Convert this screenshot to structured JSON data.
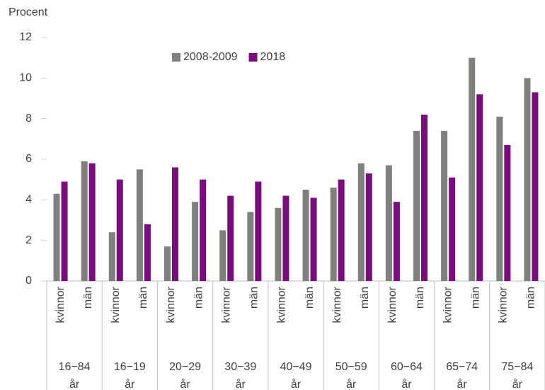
{
  "chart_data": {
    "type": "bar",
    "y_label": "Procent",
    "groups": [
      "16−84 år",
      "16−19 år",
      "20−29 år",
      "30−39 år",
      "40−49 år",
      "50−59 år",
      "60−64 år",
      "65−74 år",
      "75−84 år"
    ],
    "categories": [
      "kvinnor",
      "män",
      "kvinnor",
      "män",
      "kvinnor",
      "män",
      "kvinnor",
      "män",
      "kvinnor",
      "män",
      "kvinnor",
      "män",
      "kvinnor",
      "män",
      "kvinnor",
      "män",
      "kvinnor",
      "män"
    ],
    "series": [
      {
        "name": "2008-2009",
        "color": "#7f7f7b",
        "values": [
          4.3,
          5.9,
          2.4,
          5.5,
          1.7,
          3.9,
          2.5,
          3.4,
          3.6,
          4.5,
          4.6,
          5.8,
          5.7,
          7.4,
          7.4,
          11.0,
          8.1,
          10.0
        ]
      },
      {
        "name": "2018",
        "color": "#7b0c7e",
        "values": [
          4.9,
          5.8,
          5.0,
          2.8,
          5.6,
          5.0,
          4.2,
          4.9,
          4.2,
          4.1,
          5.0,
          5.3,
          3.9,
          8.2,
          5.1,
          9.2,
          6.7,
          9.3
        ]
      }
    ],
    "ylim": [
      0,
      12
    ],
    "yticks": [
      0,
      2,
      4,
      6,
      8,
      10,
      12
    ],
    "grid": false,
    "legend": "top"
  }
}
